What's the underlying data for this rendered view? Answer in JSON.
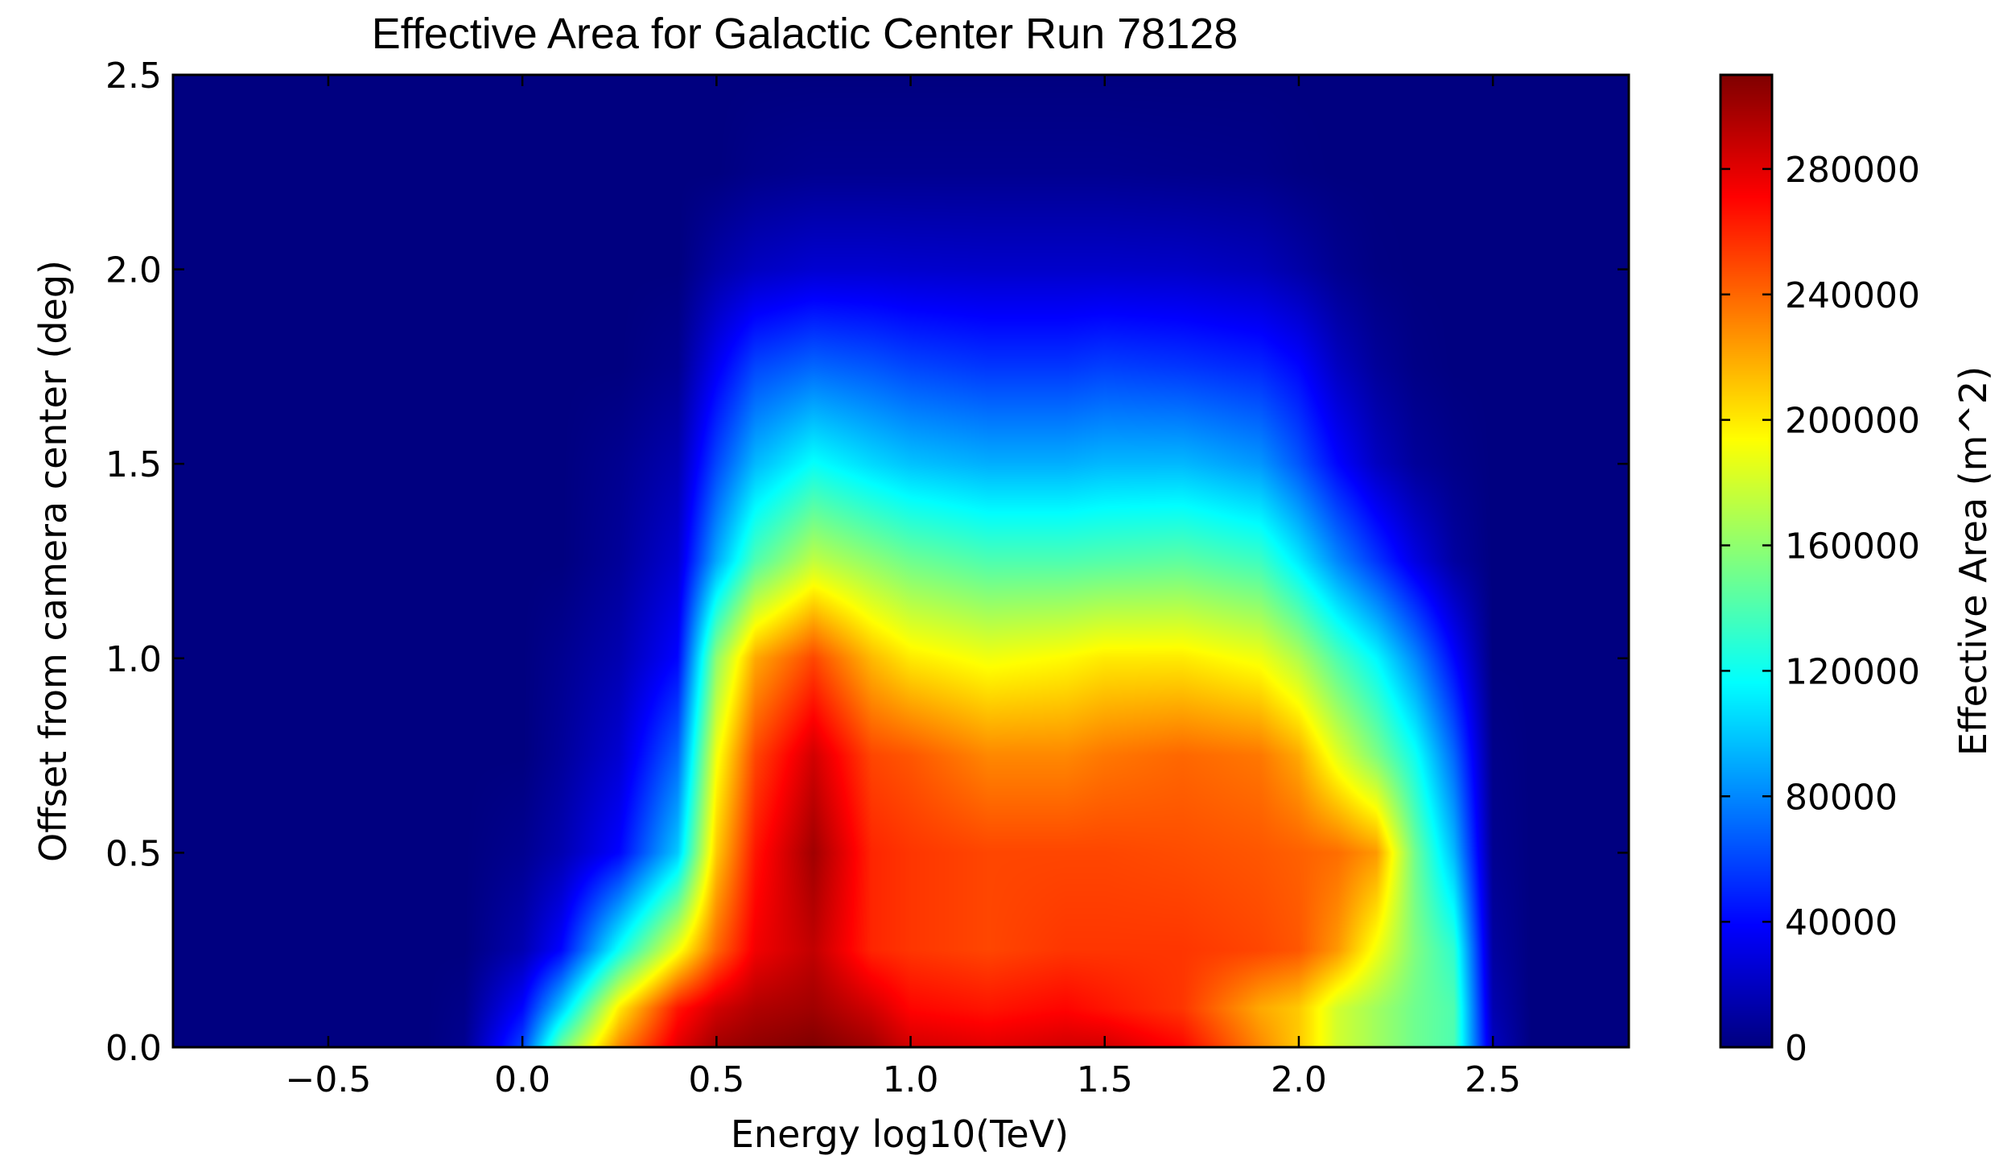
{
  "chart_data": {
    "type": "heatmap",
    "title": "Effective Area for Galactic Center Run 78128",
    "xlabel": "Energy log10(TeV)",
    "ylabel": "Offset from camera center (deg)",
    "colorbar_label": "Effective Area (m^2)",
    "colormap": "jet",
    "xlim": [
      -0.9,
      2.85
    ],
    "ylim": [
      0.0,
      2.5
    ],
    "clim": [
      0,
      310000
    ],
    "x_ticks": [
      -0.5,
      0.0,
      0.5,
      1.0,
      1.5,
      2.0,
      2.5
    ],
    "x_tick_labels": [
      "−0.5",
      "0.0",
      "0.5",
      "1.0",
      "1.5",
      "2.0",
      "2.5"
    ],
    "y_ticks": [
      0.0,
      0.5,
      1.0,
      1.5,
      2.0,
      2.5
    ],
    "y_tick_labels": [
      "0.0",
      "0.5",
      "1.0",
      "1.5",
      "2.0",
      "2.5"
    ],
    "colorbar_ticks": [
      0,
      40000,
      80000,
      120000,
      160000,
      200000,
      240000,
      280000
    ],
    "colorbar_tick_labels": [
      "0",
      "40000",
      "80000",
      "120000",
      "160000",
      "200000",
      "240000",
      "280000"
    ],
    "grid": false,
    "x": [
      -0.9,
      -0.75,
      -0.5,
      -0.25,
      -0.15,
      0.0,
      0.1,
      0.25,
      0.4,
      0.5,
      0.6,
      0.75,
      0.9,
      1.0,
      1.2,
      1.4,
      1.5,
      1.7,
      1.9,
      2.0,
      2.1,
      2.2,
      2.3,
      2.4,
      2.5,
      2.6,
      2.7,
      2.85
    ],
    "y": [
      0.0,
      0.1,
      0.25,
      0.5,
      0.75,
      1.0,
      1.25,
      1.5,
      1.75,
      2.0,
      2.25,
      2.5
    ],
    "z": [
      [
        0,
        0,
        0,
        0,
        5000,
        60000,
        150000,
        230000,
        280000,
        300000,
        305000,
        310000,
        300000,
        285000,
        280000,
        285000,
        285000,
        270000,
        230000,
        210000,
        180000,
        165000,
        150000,
        140000,
        20000,
        0,
        0,
        0
      ],
      [
        0,
        0,
        0,
        0,
        3000,
        40000,
        100000,
        200000,
        265000,
        285000,
        295000,
        300000,
        285000,
        270000,
        265000,
        270000,
        265000,
        255000,
        220000,
        210000,
        180000,
        165000,
        150000,
        140000,
        15000,
        0,
        0,
        0
      ],
      [
        0,
        0,
        0,
        0,
        0,
        15000,
        40000,
        120000,
        190000,
        240000,
        275000,
        290000,
        260000,
        255000,
        250000,
        255000,
        255000,
        255000,
        250000,
        245000,
        225000,
        190000,
        155000,
        130000,
        10000,
        0,
        0,
        0
      ],
      [
        0,
        0,
        0,
        0,
        0,
        5000,
        15000,
        40000,
        100000,
        210000,
        265000,
        300000,
        260000,
        255000,
        250000,
        250000,
        250000,
        248000,
        245000,
        242000,
        238000,
        225000,
        150000,
        95000,
        5000,
        0,
        0,
        0
      ],
      [
        0,
        0,
        0,
        0,
        0,
        0,
        8000,
        25000,
        70000,
        190000,
        250000,
        285000,
        250000,
        245000,
        230000,
        230000,
        235000,
        240000,
        235000,
        220000,
        185000,
        155000,
        120000,
        70000,
        3000,
        0,
        0,
        0
      ],
      [
        0,
        0,
        0,
        0,
        0,
        0,
        5000,
        15000,
        40000,
        160000,
        220000,
        250000,
        215000,
        200000,
        190000,
        195000,
        200000,
        200000,
        190000,
        170000,
        140000,
        115000,
        80000,
        40000,
        0,
        0,
        0,
        0
      ],
      [
        0,
        0,
        0,
        0,
        0,
        0,
        0,
        8000,
        25000,
        90000,
        140000,
        175000,
        160000,
        150000,
        140000,
        140000,
        142000,
        145000,
        135000,
        110000,
        80000,
        55000,
        30000,
        10000,
        0,
        0,
        0,
        0
      ],
      [
        0,
        0,
        0,
        0,
        0,
        0,
        0,
        5000,
        15000,
        60000,
        95000,
        118000,
        105000,
        98000,
        92000,
        92000,
        95000,
        95000,
        85000,
        65000,
        40000,
        20000,
        8000,
        3000,
        0,
        0,
        0,
        0
      ],
      [
        0,
        0,
        0,
        0,
        0,
        0,
        0,
        0,
        5000,
        35000,
        60000,
        70000,
        65000,
        60000,
        55000,
        55000,
        58000,
        55000,
        50000,
        40000,
        20000,
        8000,
        2000,
        0,
        0,
        0,
        0,
        0
      ],
      [
        0,
        0,
        0,
        0,
        0,
        0,
        0,
        0,
        0,
        12000,
        20000,
        25000,
        25000,
        24000,
        23000,
        23000,
        23000,
        22000,
        18000,
        12000,
        5000,
        1000,
        0,
        0,
        0,
        0,
        0,
        0
      ],
      [
        0,
        0,
        0,
        0,
        0,
        0,
        0,
        0,
        0,
        0,
        3000,
        5000,
        5000,
        5000,
        5000,
        5000,
        5000,
        4000,
        3000,
        1000,
        0,
        0,
        0,
        0,
        0,
        0,
        0,
        0
      ],
      [
        0,
        0,
        0,
        0,
        0,
        0,
        0,
        0,
        0,
        0,
        0,
        0,
        0,
        0,
        0,
        0,
        0,
        0,
        0,
        0,
        0,
        0,
        0,
        0,
        0,
        0,
        0,
        0
      ]
    ]
  }
}
